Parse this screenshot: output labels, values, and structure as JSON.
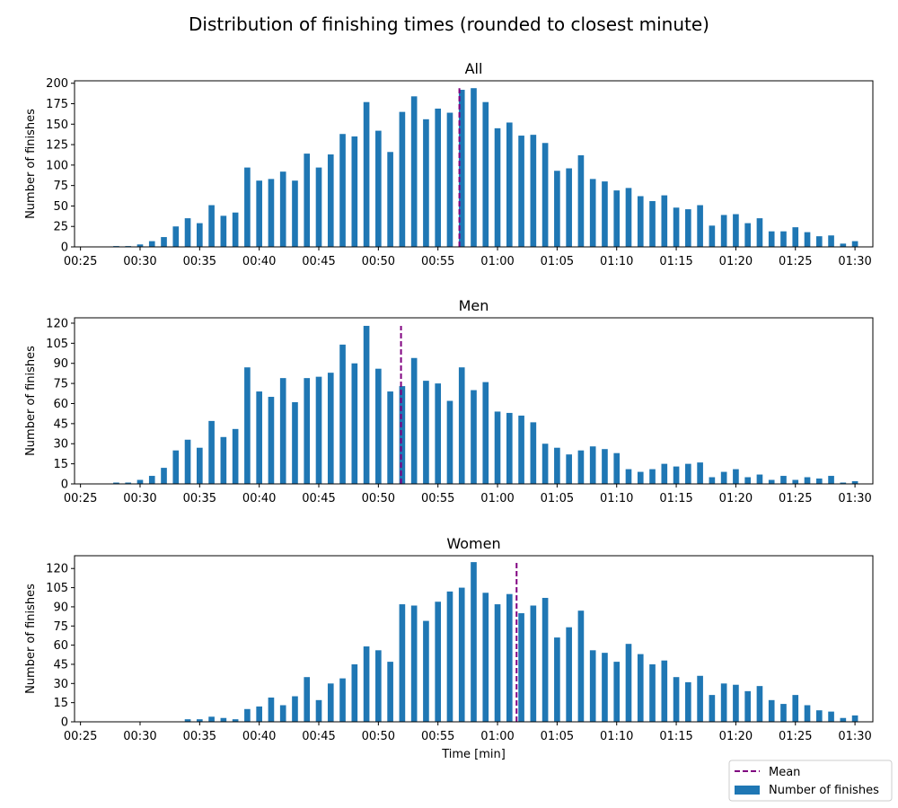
{
  "figure": {
    "title": "Distribution of finishing times (rounded to closest minute)",
    "xlabel": "Time [min]"
  },
  "legend": {
    "placement": "lower-right",
    "items": [
      {
        "label": "Mean",
        "style": "dashed-line",
        "color": "#800080"
      },
      {
        "label": "Number of finishes",
        "style": "patch",
        "color": "#1f77b4"
      }
    ]
  },
  "chart_data": [
    {
      "type": "bar",
      "title": "All",
      "ylabel": "Number of finishes",
      "bar_color": "#1f77b4",
      "mean_color": "#800080",
      "x_unit": "minutes",
      "xlim": [
        24.5,
        91.5
      ],
      "ylim": [
        0,
        203
      ],
      "yticks": [
        0,
        25,
        50,
        75,
        100,
        125,
        150,
        175,
        200
      ],
      "xticks": [
        25,
        30,
        35,
        40,
        45,
        50,
        55,
        60,
        65,
        70,
        75,
        80,
        85,
        90
      ],
      "xtick_labels": [
        "00:25",
        "00:30",
        "00:35",
        "00:40",
        "00:45",
        "00:50",
        "00:55",
        "01:00",
        "01:05",
        "01:10",
        "01:15",
        "01:20",
        "01:25",
        "01:30"
      ],
      "mean": 56.8,
      "x": [
        28,
        29,
        30,
        31,
        32,
        33,
        34,
        35,
        36,
        37,
        38,
        39,
        40,
        41,
        42,
        43,
        44,
        45,
        46,
        47,
        48,
        49,
        50,
        51,
        52,
        53,
        54,
        55,
        56,
        57,
        58,
        59,
        60,
        61,
        62,
        63,
        64,
        65,
        66,
        67,
        68,
        69,
        70,
        71,
        72,
        73,
        74,
        75,
        76,
        77,
        78,
        79,
        80,
        81,
        82,
        83,
        84,
        85,
        86,
        87,
        88,
        89,
        90
      ],
      "values": [
        1,
        1,
        3,
        7,
        12,
        25,
        35,
        29,
        51,
        38,
        42,
        97,
        81,
        83,
        92,
        81,
        114,
        97,
        113,
        138,
        135,
        177,
        142,
        116,
        165,
        184,
        156,
        169,
        164,
        192,
        194,
        177,
        145,
        152,
        136,
        137,
        127,
        93,
        96,
        112,
        83,
        80,
        69,
        72,
        62,
        56,
        63,
        48,
        46,
        51,
        26,
        39,
        40,
        29,
        35,
        19,
        19,
        24,
        18,
        13,
        14,
        4,
        7
      ]
    },
    {
      "type": "bar",
      "title": "Men",
      "ylabel": "Number of finishes",
      "bar_color": "#1f77b4",
      "mean_color": "#800080",
      "x_unit": "minutes",
      "xlim": [
        24.5,
        91.5
      ],
      "ylim": [
        0,
        124
      ],
      "yticks": [
        0,
        15,
        30,
        45,
        60,
        75,
        90,
        105,
        120
      ],
      "xticks": [
        25,
        30,
        35,
        40,
        45,
        50,
        55,
        60,
        65,
        70,
        75,
        80,
        85,
        90
      ],
      "xtick_labels": [
        "00:25",
        "00:30",
        "00:35",
        "00:40",
        "00:45",
        "00:50",
        "00:55",
        "01:00",
        "01:05",
        "01:10",
        "01:15",
        "01:20",
        "01:25",
        "01:30"
      ],
      "mean": 51.9,
      "x": [
        28,
        29,
        30,
        31,
        32,
        33,
        34,
        35,
        36,
        37,
        38,
        39,
        40,
        41,
        42,
        43,
        44,
        45,
        46,
        47,
        48,
        49,
        50,
        51,
        52,
        53,
        54,
        55,
        56,
        57,
        58,
        59,
        60,
        61,
        62,
        63,
        64,
        65,
        66,
        67,
        68,
        69,
        70,
        71,
        72,
        73,
        74,
        75,
        76,
        77,
        78,
        79,
        80,
        81,
        82,
        83,
        84,
        85,
        86,
        87,
        88,
        89,
        90
      ],
      "values": [
        1,
        1,
        3,
        6,
        12,
        25,
        33,
        27,
        47,
        35,
        41,
        87,
        69,
        65,
        79,
        61,
        79,
        80,
        83,
        104,
        90,
        118,
        86,
        69,
        73,
        94,
        77,
        75,
        62,
        87,
        70,
        76,
        54,
        53,
        51,
        46,
        30,
        27,
        22,
        25,
        28,
        26,
        23,
        11,
        9,
        11,
        15,
        13,
        15,
        16,
        5,
        9,
        11,
        5,
        7,
        3,
        6,
        3,
        5,
        4,
        6,
        1,
        2
      ]
    },
    {
      "type": "bar",
      "title": "Women",
      "ylabel": "Number of finishes",
      "bar_color": "#1f77b4",
      "mean_color": "#800080",
      "x_unit": "minutes",
      "xlim": [
        24.5,
        91.5
      ],
      "ylim": [
        0,
        130
      ],
      "yticks": [
        0,
        15,
        30,
        45,
        60,
        75,
        90,
        105,
        120
      ],
      "xticks": [
        25,
        30,
        35,
        40,
        45,
        50,
        55,
        60,
        65,
        70,
        75,
        80,
        85,
        90
      ],
      "xtick_labels": [
        "00:25",
        "00:30",
        "00:35",
        "00:40",
        "00:45",
        "00:50",
        "00:55",
        "01:00",
        "01:05",
        "01:10",
        "01:15",
        "01:20",
        "01:25",
        "01:30"
      ],
      "mean": 61.6,
      "x": [
        34,
        35,
        36,
        37,
        38,
        39,
        40,
        41,
        42,
        43,
        44,
        45,
        46,
        47,
        48,
        49,
        50,
        51,
        52,
        53,
        54,
        55,
        56,
        57,
        58,
        59,
        60,
        61,
        62,
        63,
        64,
        65,
        66,
        67,
        68,
        69,
        70,
        71,
        72,
        73,
        74,
        75,
        76,
        77,
        78,
        79,
        80,
        81,
        82,
        83,
        84,
        85,
        86,
        87,
        88,
        89,
        90
      ],
      "values": [
        2,
        2,
        4,
        3,
        2,
        10,
        12,
        19,
        13,
        20,
        35,
        17,
        30,
        34,
        45,
        59,
        56,
        47,
        92,
        91,
        79,
        94,
        102,
        105,
        125,
        101,
        92,
        100,
        85,
        91,
        97,
        66,
        74,
        87,
        56,
        54,
        47,
        61,
        53,
        45,
        48,
        35,
        31,
        36,
        21,
        30,
        29,
        24,
        28,
        17,
        14,
        21,
        13,
        9,
        8,
        3,
        5
      ]
    }
  ]
}
